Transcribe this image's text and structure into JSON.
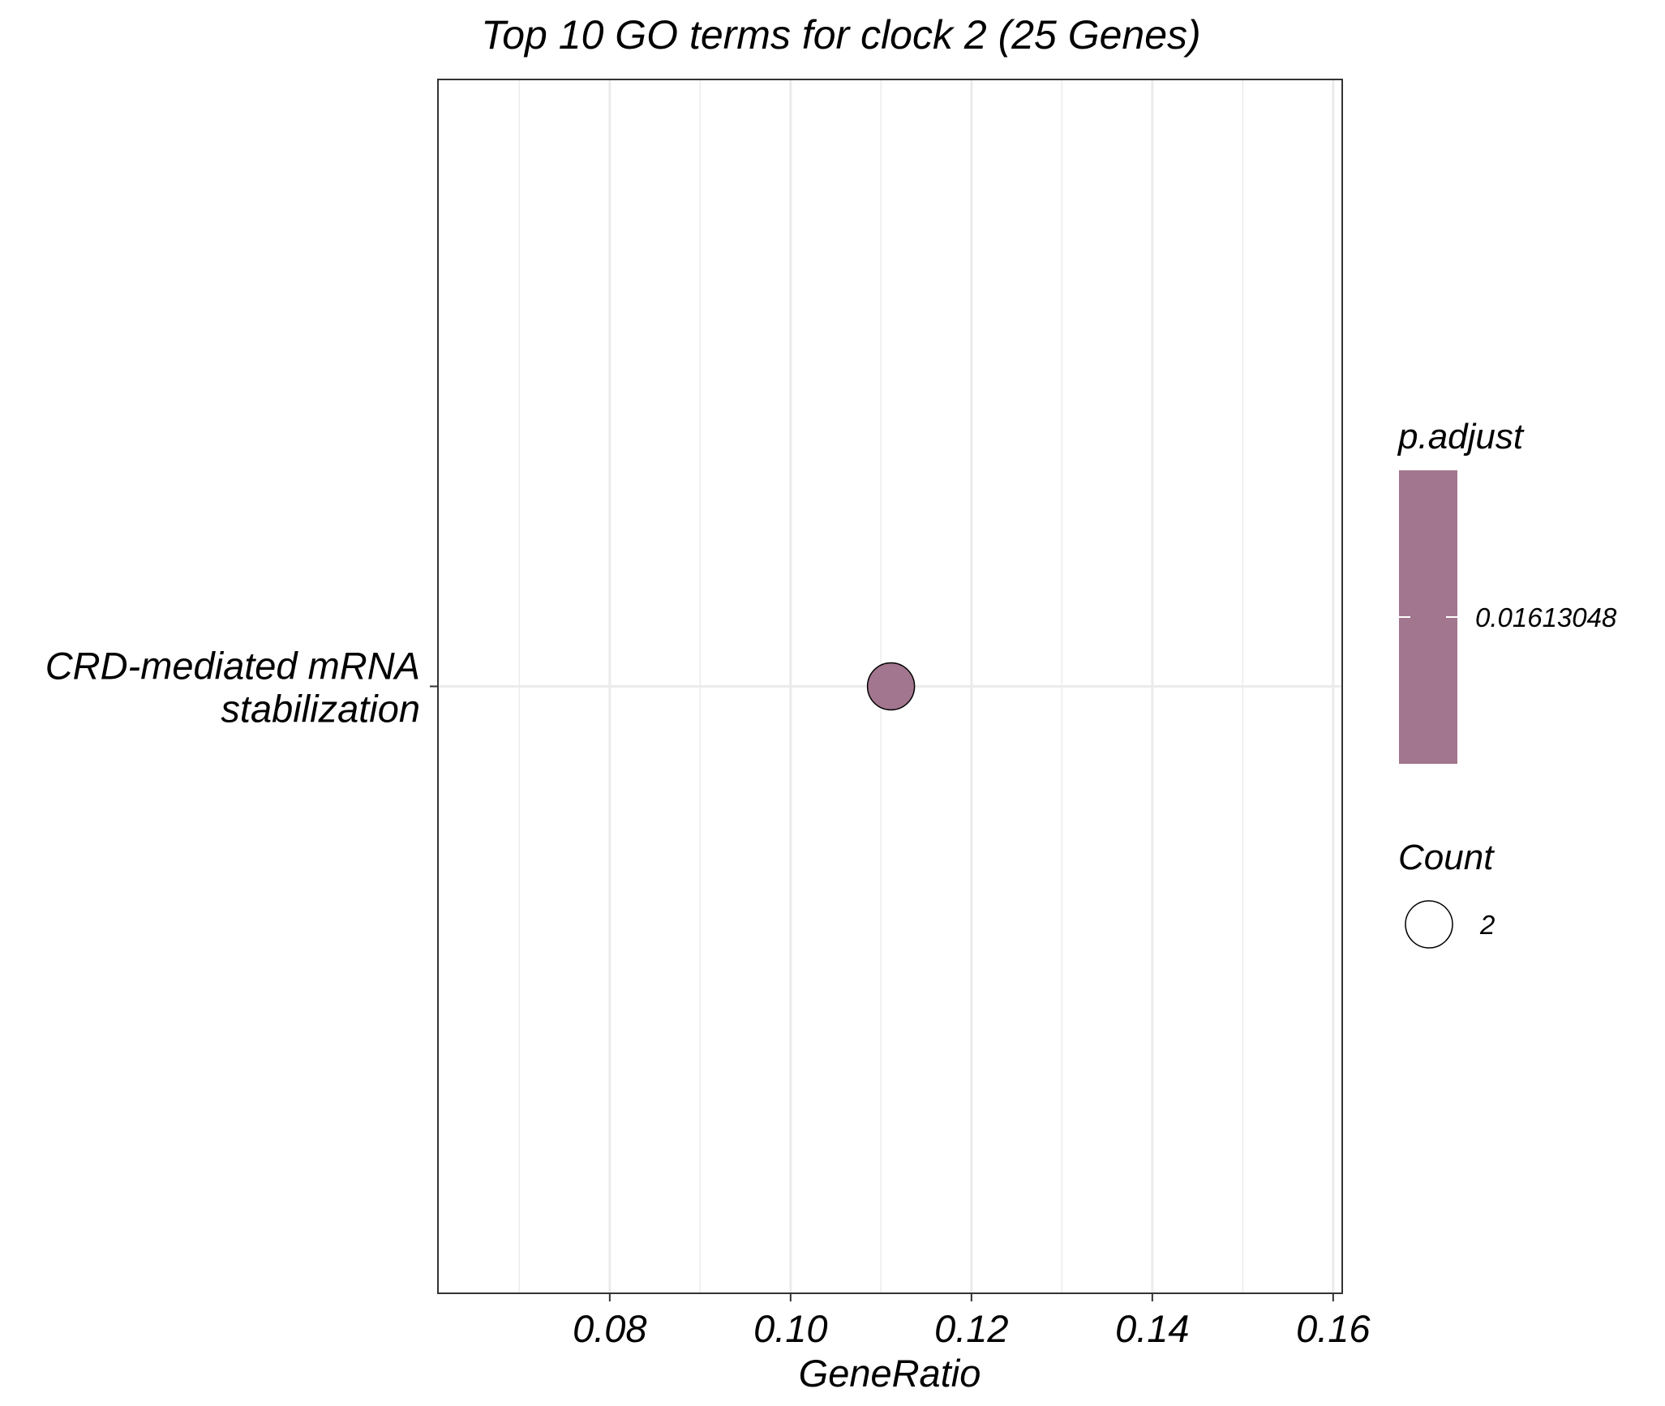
{
  "chart_data": {
    "type": "scatter",
    "title": "Top 10 GO terms for clock 2 (25 Genes)",
    "xlabel": "GeneRatio",
    "ylabel": "",
    "xlim": [
      0.061,
      0.161
    ],
    "x_ticks": [
      0.08,
      0.1,
      0.12,
      0.14,
      0.16
    ],
    "x_tick_labels": [
      "0.08",
      "0.10",
      "0.12",
      "0.14",
      "0.16"
    ],
    "x_minor_ticks": [
      0.07,
      0.09,
      0.11,
      0.13,
      0.15
    ],
    "categories": [
      [
        "CRD-mediated mRNA",
        "stabilization"
      ]
    ],
    "points": [
      {
        "category_index": 0,
        "x": 0.1111,
        "count": 2,
        "p_adjust": 0.01613048
      }
    ],
    "grid": true,
    "legend_position": "right",
    "legends": {
      "color": {
        "title": "p.adjust",
        "label": "0.01613048",
        "color": "#a2768e"
      },
      "size": {
        "title": "Count",
        "label": "2"
      }
    },
    "colors": {
      "point_fill": "#a2768e",
      "point_stroke": "#000000",
      "grid": "#ebebeb",
      "panel_border": "#333333"
    }
  }
}
